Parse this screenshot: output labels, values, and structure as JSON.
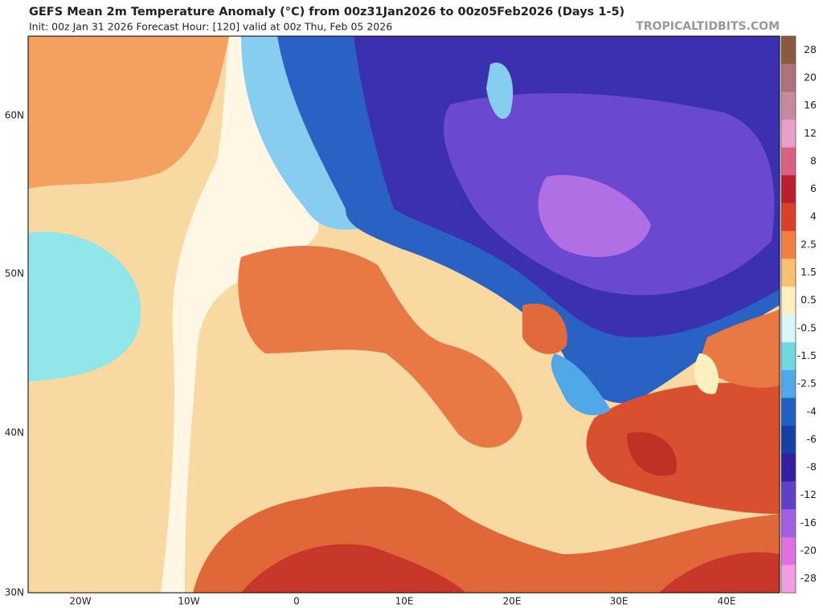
{
  "header": {
    "title": "GEFS Mean 2m Temperature Anomaly (°C) from 00z31Jan2026 to 00z05Feb2026 (Days 1-5)",
    "subtitle": "Init: 00z Jan 31 2026   Forecast Hour: [120]   valid at 00z Thu, Feb 05 2026",
    "watermark": "TROPICALTIDBITS.COM"
  },
  "axes": {
    "lat_labels": [
      "60N",
      "50N",
      "40N",
      "30N"
    ],
    "lon_labels": [
      "20W",
      "10W",
      "0",
      "10E",
      "20E",
      "30E",
      "40E"
    ]
  },
  "colorbar": {
    "labels": [
      28,
      20,
      16,
      12,
      8,
      6,
      4,
      2.5,
      1.5,
      0.5,
      -0.5,
      -1.5,
      -2.5,
      -4,
      -6,
      -8,
      -12,
      -16,
      -20,
      -28
    ],
    "colors": [
      "#8a5a3c",
      "#a8727e",
      "#c48aa0",
      "#e8a0c8",
      "#d86080",
      "#b82030",
      "#d84028",
      "#f08040",
      "#f8c070",
      "#fff0c0",
      "#d8f8f8",
      "#70d8e0",
      "#50a8e8",
      "#2060c0",
      "#1840a0",
      "#3020a0",
      "#6040c8",
      "#a060e0",
      "#e070e0",
      "#f0a0e0"
    ]
  }
}
